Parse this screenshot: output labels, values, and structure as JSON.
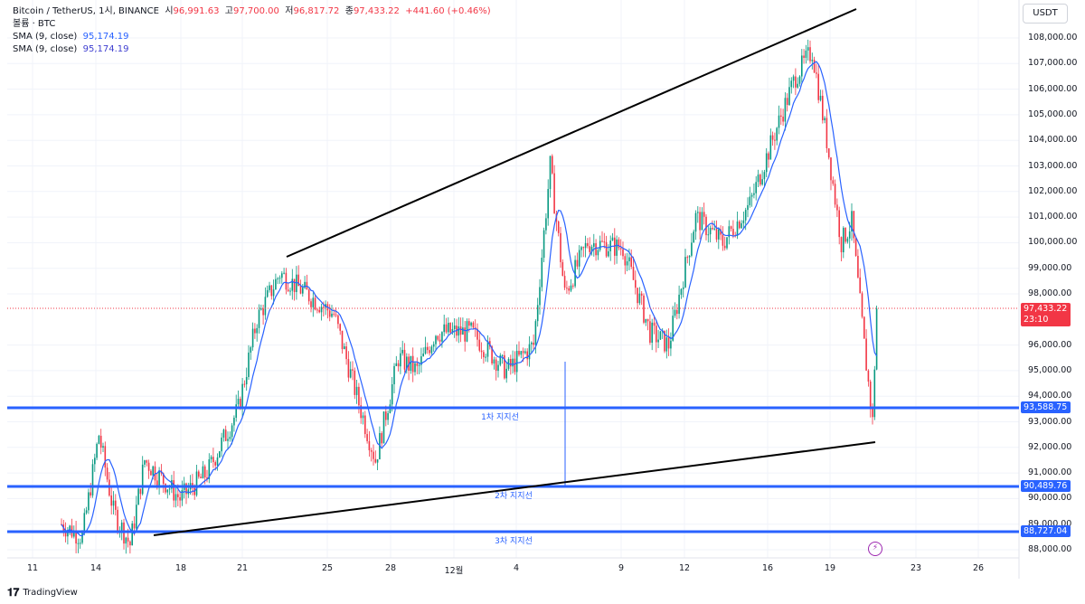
{
  "legend": {
    "symbol": "Bitcoin / TetherUS, 1시, BINANCE",
    "o_label": "시",
    "o": "96,991.63",
    "h_label": "고",
    "h": "97,700.00",
    "l_label": "저",
    "l": "96,817.72",
    "c_label": "종",
    "c": "97,433.22",
    "change": "+441.60 (+0.46%)",
    "volume": "볼륨 · BTC",
    "sma1_label": "SMA (9, close)",
    "sma1": "95,174.19",
    "sma2_label": "SMA (9, close)",
    "sma2": "95,174.19"
  },
  "currency": "USDT",
  "price_axis": [
    "108,000.00",
    "107,000.00",
    "106,000.00",
    "105,000.00",
    "104,000.00",
    "103,000.00",
    "102,000.00",
    "101,000.00",
    "100,000.00",
    "99,000.00",
    "98,000.00",
    "96,000.00",
    "95,000.00",
    "94,000.00",
    "93,000.00",
    "92,000.00",
    "91,000.00",
    "90,000.00",
    "89,000.00",
    "88,000.00"
  ],
  "price_axis_values": [
    108000,
    107000,
    106000,
    105000,
    104000,
    103000,
    102000,
    101000,
    100000,
    99000,
    98000,
    96000,
    95000,
    94000,
    93000,
    92000,
    91000,
    90000,
    89000,
    88000
  ],
  "current_price": {
    "price": "97,433.22",
    "countdown": "23:10",
    "value": 97433.22
  },
  "supports": [
    {
      "label": "1차 지지선",
      "price": "93,588.75",
      "value": 93588.75
    },
    {
      "label": "2차 지지선",
      "price": "90,489.76",
      "value": 90489.76
    },
    {
      "label": "3차 지지선",
      "price": "88,727.04",
      "value": 88727.04
    }
  ],
  "x_axis": [
    "11",
    "14",
    "18",
    "21",
    "25",
    "28",
    "12월",
    "4",
    "9",
    "12",
    "16",
    "19",
    "23",
    "26"
  ],
  "colors": {
    "up": "#089981",
    "down": "#f23645",
    "sma": "#2962ff",
    "support": "#2962ff"
  },
  "brand": "TradingView",
  "chart_data": {
    "type": "candlestick",
    "path": [
      [
        0,
        89000
      ],
      [
        10,
        88500
      ],
      [
        18,
        92500
      ],
      [
        25,
        89500
      ],
      [
        33,
        88200
      ],
      [
        40,
        91500
      ],
      [
        57,
        90000
      ],
      [
        70,
        91000
      ],
      [
        85,
        93500
      ],
      [
        94,
        97000
      ],
      [
        105,
        98800
      ],
      [
        118,
        98000
      ],
      [
        131,
        97200
      ],
      [
        142,
        94000
      ],
      [
        151,
        91500
      ],
      [
        162,
        95500
      ],
      [
        171,
        95000
      ],
      [
        180,
        96500
      ],
      [
        197,
        96500
      ],
      [
        214,
        95000
      ],
      [
        227,
        96000
      ],
      [
        235,
        103000
      ],
      [
        242,
        98000
      ],
      [
        253,
        100000
      ],
      [
        270,
        99800
      ],
      [
        283,
        96500
      ],
      [
        292,
        96000
      ],
      [
        305,
        101000
      ],
      [
        318,
        100000
      ],
      [
        331,
        101500
      ],
      [
        344,
        104500
      ],
      [
        353,
        106500
      ],
      [
        361,
        107500
      ],
      [
        368,
        104000
      ],
      [
        375,
        100000
      ],
      [
        380,
        100800
      ],
      [
        386,
        96000
      ],
      [
        390,
        93000
      ],
      [
        392,
        97433
      ]
    ]
  }
}
